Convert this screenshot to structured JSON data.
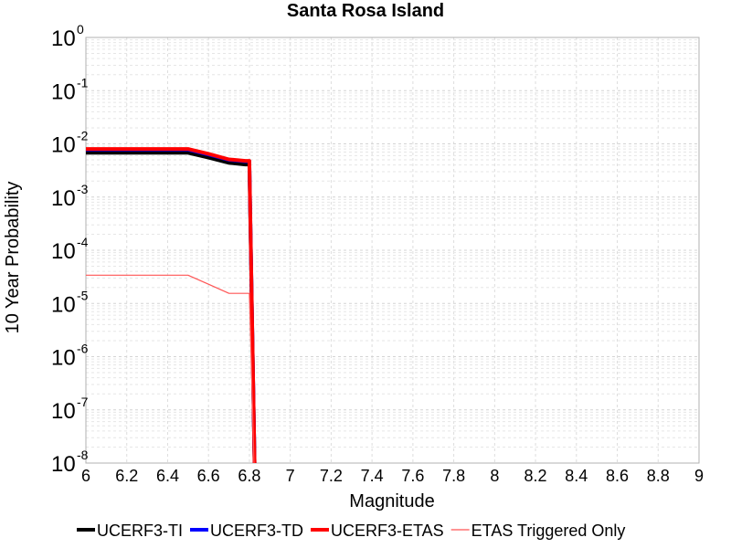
{
  "chart_data": {
    "type": "line",
    "title": "Santa Rosa Island",
    "xlabel": "Magnitude",
    "ylabel": "10 Year Probability",
    "xlim": [
      6,
      9
    ],
    "ylim": [
      1e-08,
      1
    ],
    "yscale": "log",
    "grid": true,
    "legend_position": "bottom",
    "x_ticks": [
      "6",
      "6.2",
      "6.4",
      "6.6",
      "6.8",
      "7",
      "7.2",
      "7.4",
      "7.6",
      "7.8",
      "8",
      "8.2",
      "8.4",
      "8.6",
      "8.8",
      "9"
    ],
    "y_ticks": [
      {
        "base": "10",
        "exp": "0"
      },
      {
        "base": "10",
        "exp": "-1"
      },
      {
        "base": "10",
        "exp": "-2"
      },
      {
        "base": "10",
        "exp": "-3"
      },
      {
        "base": "10",
        "exp": "-4"
      },
      {
        "base": "10",
        "exp": "-5"
      },
      {
        "base": "10",
        "exp": "-6"
      },
      {
        "base": "10",
        "exp": "-7"
      },
      {
        "base": "10",
        "exp": "-8"
      }
    ],
    "series": [
      {
        "name": "UCERF3-TI",
        "color": "#000000",
        "width": 4,
        "x": [
          6.0,
          6.5,
          6.6,
          6.7,
          6.78,
          6.8,
          6.83
        ],
        "y": [
          0.0068,
          0.0068,
          0.0055,
          0.0044,
          0.0041,
          0.0041,
          1e-09
        ]
      },
      {
        "name": "UCERF3-TD",
        "color": "#0000ff",
        "width": 4,
        "x": [
          6.0,
          6.5,
          6.6,
          6.7,
          6.78,
          6.8,
          6.83
        ],
        "y": [
          0.0078,
          0.0078,
          0.0063,
          0.005,
          0.0047,
          0.0047,
          1e-09
        ]
      },
      {
        "name": "UCERF3-ETAS",
        "color": "#ff0000",
        "width": 4,
        "x": [
          6.0,
          6.5,
          6.6,
          6.7,
          6.78,
          6.8,
          6.83
        ],
        "y": [
          0.008,
          0.008,
          0.0065,
          0.0051,
          0.0048,
          0.0048,
          1e-09
        ]
      },
      {
        "name": "ETAS Triggered Only",
        "color": "#ff5555",
        "width": 1.2,
        "x": [
          6.0,
          6.5,
          6.6,
          6.7,
          6.79,
          6.8,
          6.83
        ],
        "y": [
          3.4e-05,
          3.4e-05,
          2.3e-05,
          1.55e-05,
          1.55e-05,
          1.55e-05,
          1e-09
        ]
      }
    ]
  }
}
